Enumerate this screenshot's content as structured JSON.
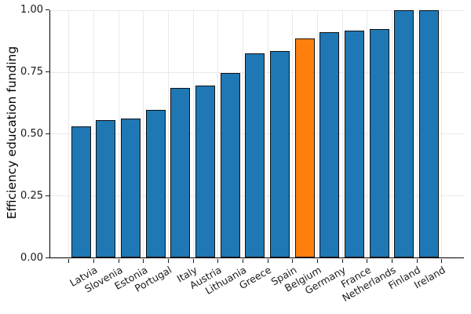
{
  "chart_data": {
    "type": "bar",
    "title": "",
    "xlabel": "",
    "ylabel": "Efficiency education funding",
    "categories": [
      "Latvia",
      "Slovenia",
      "Estonia",
      "Portugal",
      "Italy",
      "Austria",
      "Lithuania",
      "Greece",
      "Spain",
      "Belgium",
      "Germany",
      "France",
      "Netherlands",
      "Finland",
      "Ireland"
    ],
    "values": [
      0.53,
      0.556,
      0.563,
      0.597,
      0.685,
      0.695,
      0.747,
      0.825,
      0.835,
      0.885,
      0.91,
      0.917,
      0.922,
      1.0,
      1.0
    ],
    "highlight_category": "Belgium",
    "highlight_index": 9,
    "ylim": [
      0,
      1
    ],
    "yticks": [
      0,
      0.25,
      0.5,
      0.75,
      1.0
    ],
    "ytick_labels": [
      "0.00",
      "0.25",
      "0.50",
      "0.75",
      "1.00"
    ],
    "grid": true,
    "legend": "none",
    "xtick_rotation_deg": 30,
    "colors": {
      "bar": "#1f77b4",
      "highlight": "#ff7f0e",
      "edge": "#121212",
      "grid": "#e9e9e9",
      "spine": "#000000",
      "text": "#1a1a1a",
      "background": "#ffffff"
    }
  }
}
